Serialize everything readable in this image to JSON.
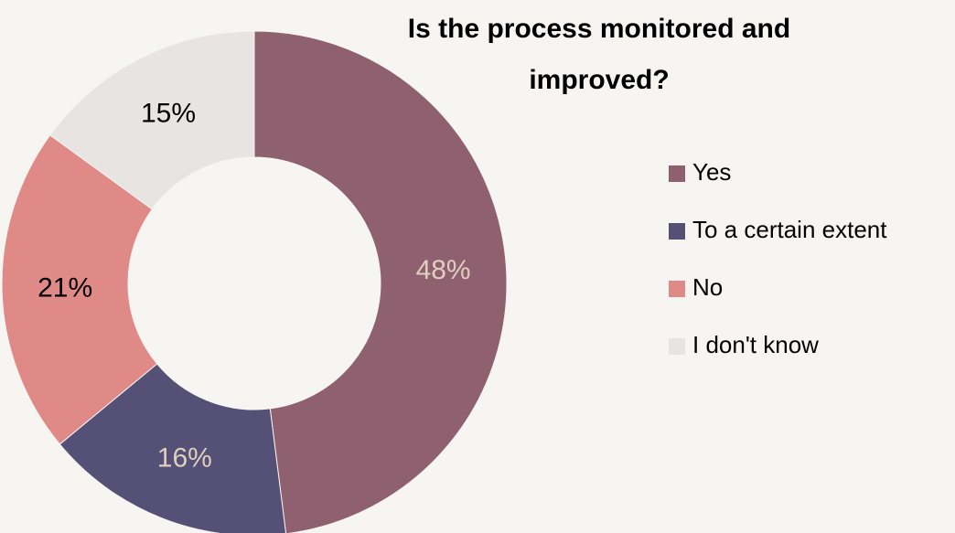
{
  "chart_data": {
    "type": "pie",
    "title": "Is the process monitored and improved?",
    "categories": [
      "Yes",
      "To a certain extent",
      "No",
      "I don't know"
    ],
    "values": [
      48,
      16,
      21,
      15
    ],
    "value_labels": [
      "48%",
      "16%",
      "21%",
      "15%"
    ],
    "colors": [
      "#8e6070",
      "#555075",
      "#e08a88",
      "#e8e4e1"
    ],
    "donut": true,
    "legend": "right"
  }
}
